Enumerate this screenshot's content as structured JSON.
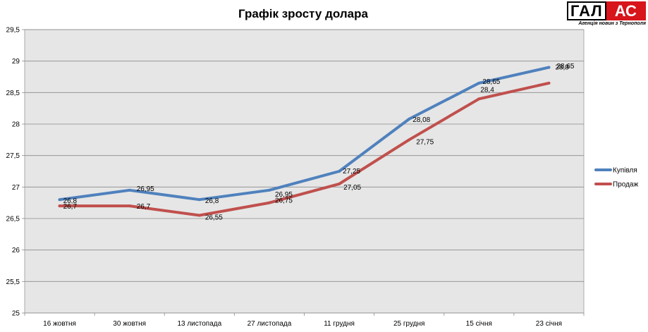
{
  "chart_data": {
    "type": "line",
    "title": "Графік зросту долара",
    "xlabel": "",
    "ylabel": "",
    "categories": [
      "16 жовтня",
      "30 жовтня",
      "13 листопада",
      "27 листопада",
      "11 грудня",
      "25 грудня",
      "15 січня",
      "23 січня"
    ],
    "ylim": [
      25,
      29.5
    ],
    "yticks": [
      "25",
      "25,5",
      "26",
      "26,5",
      "27",
      "27,5",
      "28",
      "28,5",
      "29",
      "29,5"
    ],
    "grid": true,
    "legend_position": "right",
    "series": [
      {
        "name": "Купівля",
        "color": "#4f81bd",
        "values": [
          26.8,
          26.95,
          26.8,
          26.95,
          27.25,
          28.08,
          28.65,
          28.9
        ],
        "labels": [
          "26,8",
          "26,95",
          "26,8",
          "26,95",
          "27,25",
          "28,08",
          "28,65",
          "28,9"
        ]
      },
      {
        "name": "Продаж",
        "color": "#c0504d",
        "values": [
          26.7,
          26.7,
          26.55,
          26.75,
          27.05,
          27.75,
          28.4,
          28.65
        ],
        "labels": [
          "26,7",
          "26,7",
          "26,55",
          "26,75",
          "27,05",
          "27,75",
          "28,4",
          "28,65"
        ]
      }
    ]
  },
  "logo": {
    "left_text": "ГАЛ",
    "right_text": "АС",
    "subtitle": "Агенція новин з Тернополя"
  }
}
